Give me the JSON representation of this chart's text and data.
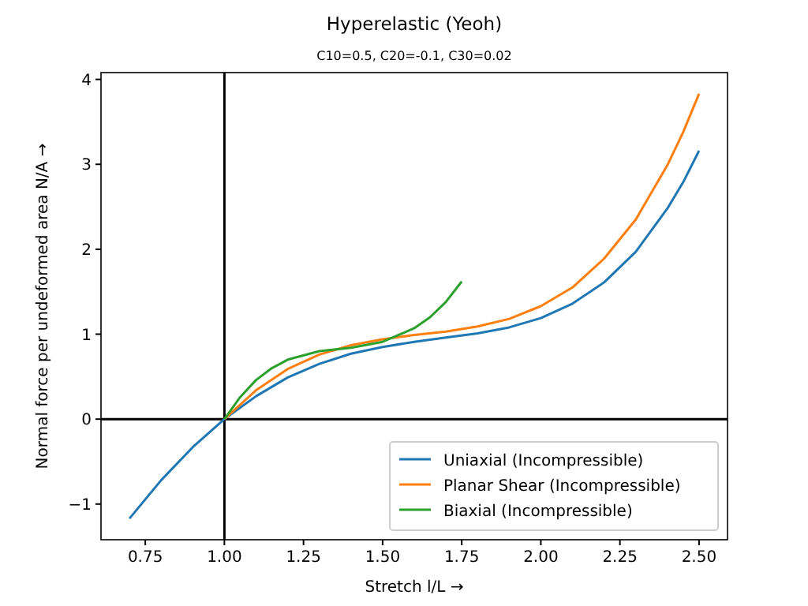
{
  "chart_data": {
    "type": "line",
    "title": "Hyperelastic (Yeoh)",
    "subtitle": "C10=0.5, C20=-0.1, C30=0.02",
    "xlabel": "Stretch l/L  →",
    "ylabel": "Normal force per undeformed area N/A  →",
    "xlim": [
      0.61,
      2.59
    ],
    "ylim": [
      -1.42,
      4.08
    ],
    "xticks": [
      {
        "value": 0.75,
        "label": "0.75"
      },
      {
        "value": 1,
        "label": "1.00"
      },
      {
        "value": 1.25,
        "label": "1.25"
      },
      {
        "value": 1.5,
        "label": "1.50"
      },
      {
        "value": 1.75,
        "label": "1.75"
      },
      {
        "value": 2,
        "label": "2.00"
      },
      {
        "value": 2.25,
        "label": "2.25"
      },
      {
        "value": 2.5,
        "label": "2.50"
      }
    ],
    "yticks": [
      {
        "value": -1,
        "label": "−1"
      },
      0,
      1,
      2,
      3,
      4
    ],
    "grid": false,
    "legend": "bottom right",
    "line_style": "solid",
    "marker": "none",
    "ref_lines": [
      {
        "axis": "x",
        "value": 1,
        "color": "#000000"
      },
      {
        "axis": "y",
        "value": 0,
        "color": "#000000"
      }
    ],
    "series": [
      {
        "name": "Uniaxial (Incompressible)",
        "color": "#1f77b4",
        "x": [
          0.7,
          0.8,
          0.9,
          1.0,
          1.1,
          1.2,
          1.3,
          1.4,
          1.5,
          1.6,
          1.7,
          1.8,
          1.9,
          2.0,
          2.1,
          2.2,
          2.3,
          2.4,
          2.45,
          2.5
        ],
        "values": [
          -1.17,
          -0.72,
          -0.33,
          0,
          0.27,
          0.49,
          0.65,
          0.77,
          0.85,
          0.91,
          0.96,
          1.01,
          1.08,
          1.19,
          1.36,
          1.61,
          1.97,
          2.48,
          2.79,
          3.16
        ]
      },
      {
        "name": "Planar Shear (Incompressible)",
        "color": "#ff7f0e",
        "x": [
          1.0,
          1.1,
          1.2,
          1.3,
          1.4,
          1.5,
          1.6,
          1.7,
          1.8,
          1.9,
          2.0,
          2.1,
          2.2,
          2.3,
          2.4,
          2.45,
          2.5
        ],
        "values": [
          0,
          0.34,
          0.59,
          0.76,
          0.87,
          0.94,
          0.99,
          1.03,
          1.09,
          1.18,
          1.33,
          1.55,
          1.89,
          2.35,
          2.99,
          3.38,
          3.83
        ]
      },
      {
        "name": "Biaxial (Incompressible)",
        "color": "#2ca02c",
        "x": [
          1.0,
          1.05,
          1.1,
          1.15,
          1.2,
          1.3,
          1.4,
          1.5,
          1.6,
          1.65,
          1.7,
          1.75
        ],
        "values": [
          0,
          0.26,
          0.46,
          0.6,
          0.7,
          0.8,
          0.84,
          0.91,
          1.07,
          1.2,
          1.38,
          1.62
        ]
      }
    ]
  }
}
